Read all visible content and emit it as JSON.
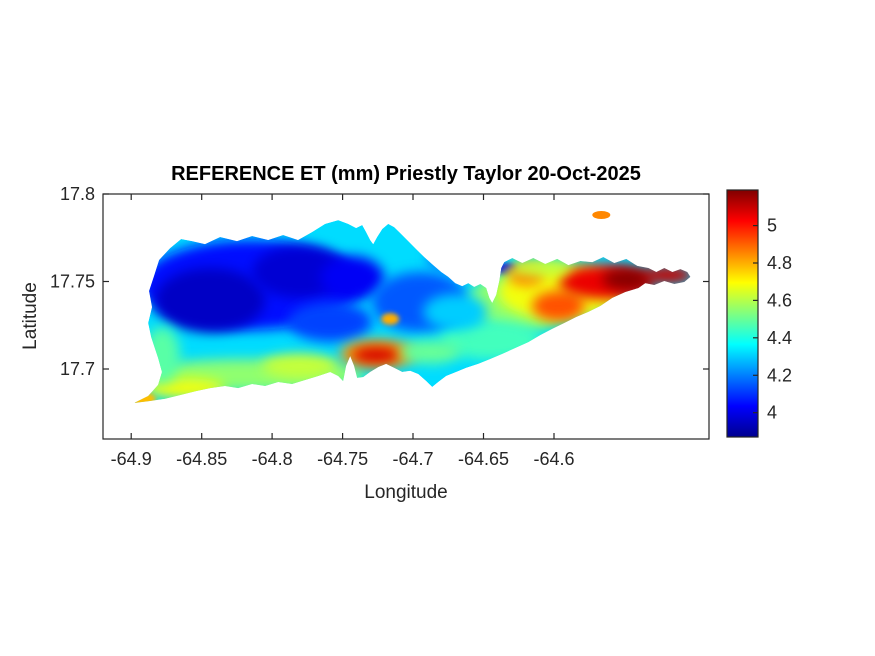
{
  "chart_data": {
    "type": "heatmap",
    "title": "REFERENCE ET (mm) Priestly Taylor 20-Oct-2025",
    "xlabel": "Longitude",
    "ylabel": "Latitude",
    "xlim": [
      -64.92,
      -64.49
    ],
    "ylim": [
      17.66,
      17.8
    ],
    "xticks": [
      -64.9,
      -64.85,
      -64.8,
      -64.75,
      -64.7,
      -64.65,
      -64.6
    ],
    "xtick_labels": [
      "-64.9",
      "-64.85",
      "-64.8",
      "-64.75",
      "-64.7",
      "-64.65",
      "-64.6"
    ],
    "yticks": [
      17.7,
      17.75,
      17.8
    ],
    "ytick_labels": [
      "17.7",
      "17.75",
      "17.8"
    ],
    "grid": false,
    "colors": {
      "axis": "#262626",
      "title": "#000000",
      "background": "#ffffff"
    },
    "colorbar": {
      "position": "right",
      "cmin": 3.87,
      "cmax": 5.19,
      "ticks": [
        4,
        4.2,
        4.4,
        4.6,
        4.8,
        5
      ],
      "tick_labels": [
        "4",
        "4.2",
        "4.4",
        "4.6",
        "4.8",
        "5"
      ],
      "colormap": "jet",
      "stops": [
        {
          "t": 0.0,
          "color": "#00008F"
        },
        {
          "t": 0.125,
          "color": "#0000FF"
        },
        {
          "t": 0.375,
          "color": "#00FFFF"
        },
        {
          "t": 0.625,
          "color": "#FFFF00"
        },
        {
          "t": 0.875,
          "color": "#FF0000"
        },
        {
          "t": 1.0,
          "color": "#800000"
        }
      ]
    },
    "base_value": 4.32,
    "island_outline": [
      [
        -64.898,
        17.6806
      ],
      [
        -64.888,
        17.6846
      ],
      [
        -64.8809,
        17.6909
      ],
      [
        -64.8781,
        17.6983
      ],
      [
        -64.8809,
        17.7063
      ],
      [
        -64.8859,
        17.7183
      ],
      [
        -64.888,
        17.7263
      ],
      [
        -64.8852,
        17.7354
      ],
      [
        -64.8873,
        17.7446
      ],
      [
        -64.8838,
        17.7531
      ],
      [
        -64.8802,
        17.7623
      ],
      [
        -64.8724,
        17.7691
      ],
      [
        -64.8646,
        17.7743
      ],
      [
        -64.8568,
        17.7731
      ],
      [
        -64.8476,
        17.7714
      ],
      [
        -64.8369,
        17.7754
      ],
      [
        -64.8249,
        17.7731
      ],
      [
        -64.8142,
        17.776
      ],
      [
        -64.8028,
        17.7737
      ],
      [
        -64.7922,
        17.7766
      ],
      [
        -64.7816,
        17.7737
      ],
      [
        -64.7716,
        17.7783
      ],
      [
        -64.7624,
        17.7829
      ],
      [
        -64.7531,
        17.7851
      ],
      [
        -64.746,
        17.7829
      ],
      [
        -64.7404,
        17.7806
      ],
      [
        -64.7361,
        17.7823
      ],
      [
        -64.7333,
        17.7783
      ],
      [
        -64.7304,
        17.7737
      ],
      [
        -64.7283,
        17.7714
      ],
      [
        -64.7255,
        17.7754
      ],
      [
        -64.7219,
        17.78
      ],
      [
        -64.7176,
        17.7829
      ],
      [
        -64.7134,
        17.7811
      ],
      [
        -64.7091,
        17.7777
      ],
      [
        -64.7034,
        17.7731
      ],
      [
        -64.6978,
        17.7686
      ],
      [
        -64.6921,
        17.764
      ],
      [
        -64.6857,
        17.7594
      ],
      [
        -64.68,
        17.7554
      ],
      [
        -64.675,
        17.7526
      ],
      [
        -64.6701,
        17.7491
      ],
      [
        -64.6651,
        17.7474
      ],
      [
        -64.6608,
        17.7491
      ],
      [
        -64.6566,
        17.7469
      ],
      [
        -64.6523,
        17.7486
      ],
      [
        -64.6481,
        17.7463
      ],
      [
        -64.6459,
        17.7406
      ],
      [
        -64.6438,
        17.7377
      ],
      [
        -64.641,
        17.7423
      ],
      [
        -64.6388,
        17.7503
      ],
      [
        -64.6374,
        17.7577
      ],
      [
        -64.6353,
        17.7611
      ],
      [
        -64.6296,
        17.7634
      ],
      [
        -64.6225,
        17.7606
      ],
      [
        -64.6147,
        17.7634
      ],
      [
        -64.6062,
        17.76
      ],
      [
        -64.5977,
        17.7629
      ],
      [
        -64.5898,
        17.7594
      ],
      [
        -64.5813,
        17.7617
      ],
      [
        -64.5728,
        17.7611
      ],
      [
        -64.565,
        17.764
      ],
      [
        -64.5572,
        17.7606
      ],
      [
        -64.5487,
        17.7629
      ],
      [
        -64.5409,
        17.7589
      ],
      [
        -64.533,
        17.7577
      ],
      [
        -64.5274,
        17.7554
      ],
      [
        -64.5217,
        17.7577
      ],
      [
        -64.516,
        17.7554
      ],
      [
        -64.5103,
        17.7571
      ],
      [
        -64.5054,
        17.7554
      ],
      [
        -64.5032,
        17.7526
      ],
      [
        -64.5075,
        17.7497
      ],
      [
        -64.5146,
        17.7486
      ],
      [
        -64.5217,
        17.7503
      ],
      [
        -64.5288,
        17.748
      ],
      [
        -64.5352,
        17.7491
      ],
      [
        -64.5401,
        17.7463
      ],
      [
        -64.5494,
        17.744
      ],
      [
        -64.5586,
        17.7406
      ],
      [
        -64.5671,
        17.736
      ],
      [
        -64.5756,
        17.7326
      ],
      [
        -64.5842,
        17.7297
      ],
      [
        -64.5927,
        17.7263
      ],
      [
        -64.6012,
        17.7229
      ],
      [
        -64.6097,
        17.7194
      ],
      [
        -64.6182,
        17.7154
      ],
      [
        -64.6275,
        17.712
      ],
      [
        -64.6367,
        17.7086
      ],
      [
        -64.6452,
        17.7057
      ],
      [
        -64.6537,
        17.7029
      ],
      [
        -64.6623,
        17.7006
      ],
      [
        -64.6694,
        17.6983
      ],
      [
        -64.6765,
        17.696
      ],
      [
        -64.6821,
        17.6926
      ],
      [
        -64.6864,
        17.6897
      ],
      [
        -64.6907,
        17.6931
      ],
      [
        -64.6963,
        17.6971
      ],
      [
        -64.702,
        17.6989
      ],
      [
        -64.7077,
        17.6983
      ],
      [
        -64.7134,
        17.7006
      ],
      [
        -64.7191,
        17.7029
      ],
      [
        -64.7247,
        17.7011
      ],
      [
        -64.7304,
        17.6983
      ],
      [
        -64.7354,
        17.6954
      ],
      [
        -64.7397,
        17.6949
      ],
      [
        -64.7418,
        17.7017
      ],
      [
        -64.7446,
        17.7074
      ],
      [
        -64.7475,
        17.7017
      ],
      [
        -64.7496,
        17.6931
      ],
      [
        -64.7531,
        17.696
      ],
      [
        -64.7588,
        17.6983
      ],
      [
        -64.7673,
        17.696
      ],
      [
        -64.7766,
        17.6937
      ],
      [
        -64.7858,
        17.6914
      ],
      [
        -64.7957,
        17.6926
      ],
      [
        -64.805,
        17.6903
      ],
      [
        -64.8142,
        17.6914
      ],
      [
        -64.8241,
        17.6891
      ],
      [
        -64.8334,
        17.6903
      ],
      [
        -64.844,
        17.6891
      ],
      [
        -64.854,
        17.6874
      ],
      [
        -64.8653,
        17.6851
      ],
      [
        -64.876,
        17.6829
      ],
      [
        -64.8866,
        17.6817
      ]
    ],
    "field_blobs": [
      {
        "lon": -64.8156,
        "lat": 17.748,
        "rx": 0.0781,
        "ry": 0.0257,
        "value": 4.05
      },
      {
        "lon": -64.844,
        "lat": 17.7394,
        "rx": 0.039,
        "ry": 0.0183,
        "value": 3.95
      },
      {
        "lon": -64.7801,
        "lat": 17.7554,
        "rx": 0.0341,
        "ry": 0.0149,
        "value": 3.97
      },
      {
        "lon": -64.7432,
        "lat": 17.752,
        "rx": 0.0227,
        "ry": 0.0126,
        "value": 4.02
      },
      {
        "lon": -64.7588,
        "lat": 17.7269,
        "rx": 0.0298,
        "ry": 0.0114,
        "value": 4.12
      },
      {
        "lon": -64.6949,
        "lat": 17.7383,
        "rx": 0.0341,
        "ry": 0.0171,
        "value": 4.15
      },
      {
        "lon": -64.6701,
        "lat": 17.7634,
        "rx": 0.0199,
        "ry": 0.008,
        "value": 4.18
      },
      {
        "lon": -64.6332,
        "lat": 17.7566,
        "rx": 0.0085,
        "ry": 0.004,
        "value": 4.02
      },
      {
        "lon": -64.8156,
        "lat": 17.6966,
        "rx": 0.0817,
        "ry": 0.0091,
        "value": 4.55
      },
      {
        "lon": -64.8618,
        "lat": 17.6891,
        "rx": 0.0284,
        "ry": 0.0057,
        "value": 4.68
      },
      {
        "lon": -64.7801,
        "lat": 17.7017,
        "rx": 0.027,
        "ry": 0.0069,
        "value": 4.62
      },
      {
        "lon": -64.8923,
        "lat": 17.6829,
        "rx": 0.0099,
        "ry": 0.004,
        "value": 4.78
      },
      {
        "lon": -64.8781,
        "lat": 17.708,
        "rx": 0.0128,
        "ry": 0.016,
        "value": 4.48
      },
      {
        "lon": -64.7247,
        "lat": 17.7086,
        "rx": 0.027,
        "ry": 0.008,
        "value": 4.82
      },
      {
        "lon": -64.7262,
        "lat": 17.708,
        "rx": 0.017,
        "ry": 0.0046,
        "value": 5.08
      },
      {
        "lon": -64.7162,
        "lat": 17.7286,
        "rx": 0.0064,
        "ry": 0.0034,
        "value": 4.8
      },
      {
        "lon": -64.6239,
        "lat": 17.7383,
        "rx": 0.0369,
        "ry": 0.0171,
        "value": 4.55
      },
      {
        "lon": -64.5955,
        "lat": 17.744,
        "rx": 0.044,
        "ry": 0.016,
        "value": 4.68
      },
      {
        "lon": -64.6197,
        "lat": 17.7537,
        "rx": 0.0128,
        "ry": 0.0063,
        "value": 4.85
      },
      {
        "lon": -64.5969,
        "lat": 17.736,
        "rx": 0.0185,
        "ry": 0.0086,
        "value": 4.92
      },
      {
        "lon": -64.5636,
        "lat": 17.7497,
        "rx": 0.0327,
        "ry": 0.0097,
        "value": 5.05
      },
      {
        "lon": -64.5472,
        "lat": 17.7514,
        "rx": 0.0185,
        "ry": 0.0063,
        "value": 5.18
      },
      {
        "lon": -64.5188,
        "lat": 17.7537,
        "rx": 0.0178,
        "ry": 0.0051,
        "value": 5.1
      },
      {
        "lon": -64.6097,
        "lat": 17.7577,
        "rx": 0.0213,
        "ry": 0.0046,
        "value": 4.62
      },
      {
        "lon": -64.6452,
        "lat": 17.7166,
        "rx": 0.0355,
        "ry": 0.0114,
        "value": 4.45
      },
      {
        "lon": -64.6701,
        "lat": 17.7326,
        "rx": 0.0227,
        "ry": 0.0103,
        "value": 4.3
      },
      {
        "lon": -64.6878,
        "lat": 17.7097,
        "rx": 0.0213,
        "ry": 0.0069,
        "value": 4.5
      }
    ],
    "islets": [
      {
        "lon": -64.5664,
        "lat": 17.788,
        "rx": 0.0064,
        "ry": 0.0023,
        "value": 4.85
      }
    ]
  }
}
